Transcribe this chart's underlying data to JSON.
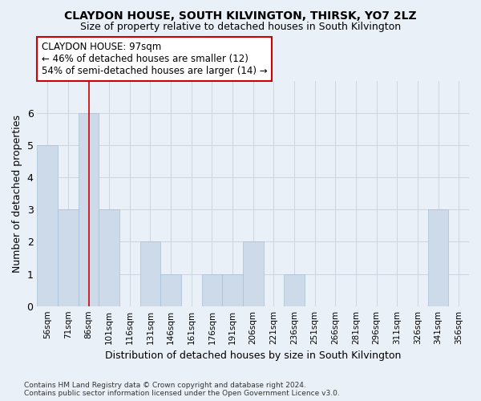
{
  "title": "CLAYDON HOUSE, SOUTH KILVINGTON, THIRSK, YO7 2LZ",
  "subtitle": "Size of property relative to detached houses in South Kilvington",
  "xlabel": "Distribution of detached houses by size in South Kilvington",
  "ylabel": "Number of detached properties",
  "categories": [
    "56sqm",
    "71sqm",
    "86sqm",
    "101sqm",
    "116sqm",
    "131sqm",
    "146sqm",
    "161sqm",
    "176sqm",
    "191sqm",
    "206sqm",
    "221sqm",
    "236sqm",
    "251sqm",
    "266sqm",
    "281sqm",
    "296sqm",
    "311sqm",
    "326sqm",
    "341sqm",
    "356sqm"
  ],
  "values": [
    5,
    3,
    6,
    3,
    0,
    2,
    1,
    0,
    1,
    1,
    2,
    0,
    1,
    0,
    0,
    0,
    0,
    0,
    0,
    3,
    0
  ],
  "bar_color": "#cddaea",
  "bar_edge_color": "#a8bfd4",
  "grid_color": "#ccd5e0",
  "background_color": "#eaf0f8",
  "vline_x_index": 2,
  "vline_color": "#cc0000",
  "annotation_title": "CLAYDON HOUSE: 97sqm",
  "annotation_line1": "← 46% of detached houses are smaller (12)",
  "annotation_line2": "54% of semi-detached houses are larger (14) →",
  "annotation_box_facecolor": "#ffffff",
  "annotation_box_edgecolor": "#cc0000",
  "ylim": [
    0,
    7
  ],
  "yticks": [
    0,
    1,
    2,
    3,
    4,
    5,
    6
  ],
  "footer_line1": "Contains HM Land Registry data © Crown copyright and database right 2024.",
  "footer_line2": "Contains public sector information licensed under the Open Government Licence v3.0."
}
